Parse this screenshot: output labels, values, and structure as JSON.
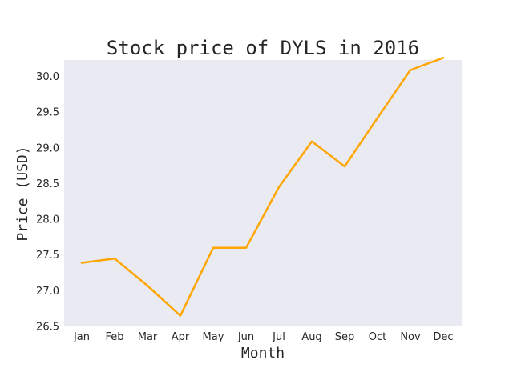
{
  "chart_data": {
    "type": "line",
    "title": "Stock price of DYLS in 2016",
    "xlabel": "Month",
    "ylabel": "Price (USD)",
    "categories": [
      "Jan",
      "Feb",
      "Mar",
      "Apr",
      "May",
      "Jun",
      "Jul",
      "Aug",
      "Sep",
      "Oct",
      "Nov",
      "Dec"
    ],
    "series": [
      {
        "values": [
          27.39,
          27.45,
          27.07,
          26.65,
          27.6,
          27.6,
          28.45,
          29.09,
          28.74,
          29.42,
          30.09,
          30.26
        ],
        "color": "#ffa500"
      }
    ],
    "ylim": [
      26.5,
      30.23
    ],
    "yticks": [
      26.5,
      27.0,
      27.5,
      28.0,
      28.5,
      29.0,
      29.5,
      30.0
    ],
    "ytick_labels": [
      "26.5",
      "27.0",
      "27.5",
      "28.0",
      "28.5",
      "29.0",
      "29.5",
      "30.0"
    ],
    "grid": false,
    "background": "#eaeaf2"
  }
}
